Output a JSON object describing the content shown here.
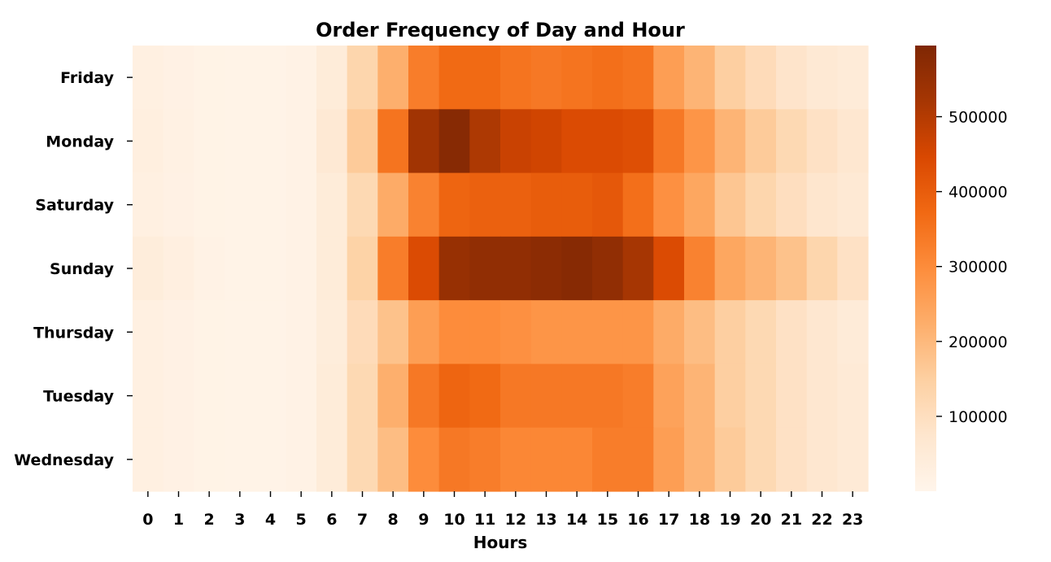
{
  "chart_data": {
    "type": "heatmap",
    "title": "Order Frequency of Day and Hour",
    "xlabel": "Hours",
    "ylabel": "",
    "x": [
      "0",
      "1",
      "2",
      "3",
      "4",
      "5",
      "6",
      "7",
      "8",
      "9",
      "10",
      "11",
      "12",
      "13",
      "14",
      "15",
      "16",
      "17",
      "18",
      "19",
      "20",
      "21",
      "22",
      "23"
    ],
    "y": [
      "Friday",
      "Monday",
      "Saturday",
      "Sunday",
      "Thursday",
      "Tuesday",
      "Wednesday"
    ],
    "values": [
      [
        25000,
        18000,
        12000,
        10000,
        10000,
        15000,
        45000,
        130000,
        220000,
        330000,
        370000,
        370000,
        350000,
        340000,
        350000,
        360000,
        350000,
        260000,
        210000,
        150000,
        110000,
        80000,
        60000,
        50000
      ],
      [
        30000,
        20000,
        12000,
        10000,
        10000,
        16000,
        60000,
        160000,
        350000,
        530000,
        580000,
        510000,
        470000,
        460000,
        440000,
        440000,
        430000,
        340000,
        280000,
        210000,
        160000,
        120000,
        90000,
        70000
      ],
      [
        25000,
        18000,
        12000,
        10000,
        10000,
        15000,
        45000,
        120000,
        230000,
        320000,
        380000,
        390000,
        390000,
        400000,
        400000,
        410000,
        360000,
        290000,
        240000,
        170000,
        130000,
        100000,
        75000,
        60000
      ],
      [
        40000,
        28000,
        16000,
        10000,
        10000,
        15000,
        45000,
        140000,
        330000,
        440000,
        550000,
        560000,
        560000,
        570000,
        580000,
        560000,
        520000,
        440000,
        320000,
        240000,
        210000,
        180000,
        130000,
        90000
      ],
      [
        25000,
        18000,
        12000,
        10000,
        10000,
        15000,
        40000,
        110000,
        180000,
        260000,
        300000,
        300000,
        290000,
        280000,
        280000,
        280000,
        280000,
        230000,
        190000,
        150000,
        120000,
        90000,
        70000,
        50000
      ],
      [
        25000,
        18000,
        12000,
        10000,
        10000,
        15000,
        45000,
        120000,
        220000,
        340000,
        380000,
        370000,
        340000,
        340000,
        340000,
        340000,
        330000,
        250000,
        210000,
        150000,
        120000,
        90000,
        70000,
        55000
      ],
      [
        25000,
        18000,
        12000,
        10000,
        10000,
        15000,
        45000,
        120000,
        190000,
        300000,
        340000,
        330000,
        310000,
        310000,
        310000,
        330000,
        330000,
        260000,
        210000,
        160000,
        120000,
        90000,
        70000,
        55000
      ]
    ],
    "colorbar": {
      "min": 0,
      "max": 595000,
      "ticks": [
        100000,
        200000,
        300000,
        400000,
        500000
      ],
      "tick_labels": [
        "100000",
        "200000",
        "300000",
        "400000",
        "500000"
      ],
      "colormap": "Oranges"
    },
    "grid": false
  }
}
